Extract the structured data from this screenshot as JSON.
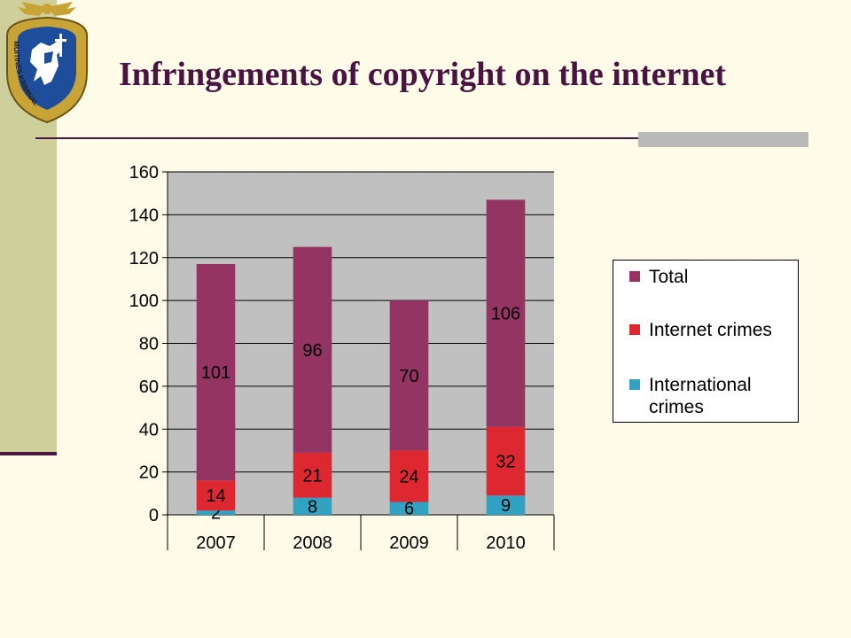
{
  "slide": {
    "title": "Infringements of copyright on the internet",
    "logo_text": "MUITINĖS KRIMINALINĖ TARNYBA"
  },
  "colors": {
    "background": "#fefce8",
    "sidebar": "#cfcf9c",
    "title": "#4a1442",
    "plot_background": "#c0c0c0"
  },
  "chart_data": {
    "type": "bar",
    "stacked": true,
    "categories": [
      "2007",
      "2008",
      "2009",
      "2010"
    ],
    "series": [
      {
        "name": "International crimes",
        "values": [
          2,
          8,
          6,
          9
        ],
        "color": "#31a2c2"
      },
      {
        "name": "Internet crimes",
        "values": [
          14,
          21,
          24,
          32
        ],
        "color": "#dd2832"
      },
      {
        "name": "Total",
        "values": [
          101,
          96,
          70,
          106
        ],
        "color": "#943463"
      }
    ],
    "legend_order": [
      "Total",
      "Internet crimes",
      "International crimes"
    ],
    "ylim": [
      0,
      160
    ],
    "yticks": [
      0,
      20,
      40,
      60,
      80,
      100,
      120,
      140,
      160
    ],
    "grid": true,
    "legend_position": "right",
    "title": "",
    "xlabel": "",
    "ylabel": ""
  }
}
